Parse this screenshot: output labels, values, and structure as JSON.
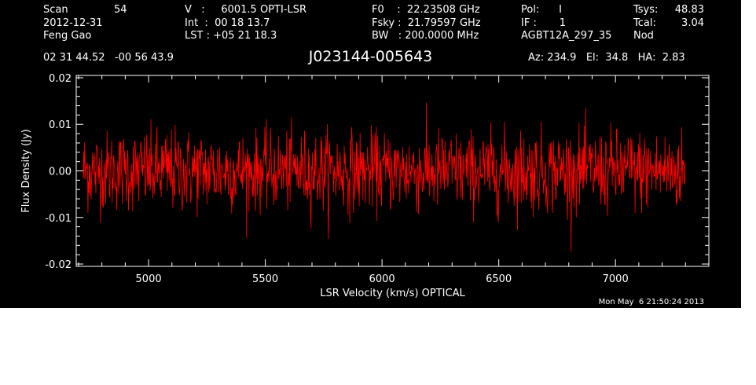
{
  "header": {
    "col1": [
      "Scan",
      "2012-12-31",
      "Feng Gao"
    ],
    "col1_value": "54",
    "col2": [
      "V   :     6001.5 OPTI-LSR",
      "Int  :  00 18 13.7",
      "LST : +05 21 18.3"
    ],
    "col3": [
      "F0    :  22.23508 GHz",
      "Fsky :  21.79597 GHz",
      "BW   : 200.0000 MHz"
    ],
    "col4": [
      "Pol:      I",
      "IF :       1",
      "AGBT12A_297_35"
    ],
    "col5_labels": [
      "Tsys:",
      "Tcal:",
      "Nod"
    ],
    "col5_values": [
      "48.83",
      "3.04",
      ""
    ],
    "coords": "02 31 44.52   -00 56 43.9",
    "source": "J023144-005643",
    "pointing": "Az: 234.9   El:  34.8   HA:  2.83",
    "timestamp": "Mon May  6 21:50:24 2013"
  },
  "colors": {
    "background": "#000000",
    "foreground": "#ffffff",
    "trace": "#ff0000"
  },
  "chart_data": {
    "type": "line",
    "title": "J023144-005643",
    "xlabel": "LSR Velocity (km/s) OPTICAL",
    "ylabel": "Flux Density (Jy)",
    "xlim": [
      4690,
      7400
    ],
    "ylim": [
      -0.0205,
      0.0205
    ],
    "xticks": [
      5000,
      5500,
      6000,
      6500,
      7000
    ],
    "yticks": [
      -0.02,
      -0.01,
      0.0,
      0.01,
      0.02
    ],
    "ytick_labels": [
      "-0.02",
      "-0.01",
      "0.00",
      "0.01",
      "0.02"
    ],
    "series": [
      {
        "x_start": 4720,
        "x_end": 7300,
        "step": 12,
        "rms_envelope_x": [
          4720,
          4800,
          4900,
          5000,
          5100,
          5200,
          5300,
          5400,
          5500,
          5600,
          5700,
          5800,
          5900,
          6000,
          6100,
          6200,
          6300,
          6400,
          6500,
          6600,
          6700,
          6800,
          6900,
          7000,
          7100,
          7200,
          7300
        ],
        "rms_envelope_y": [
          0.0052,
          0.005,
          0.0049,
          0.0052,
          0.0054,
          0.0051,
          0.005,
          0.0049,
          0.0048,
          0.0049,
          0.005,
          0.0051,
          0.005,
          0.0049,
          0.005,
          0.0053,
          0.005,
          0.0049,
          0.0051,
          0.0053,
          0.0052,
          0.0051,
          0.005,
          0.0052,
          0.0051,
          0.005,
          0.0052
        ],
        "mean": 0.0,
        "max_value": 0.017,
        "min_value": -0.0175
      }
    ],
    "grid": false
  }
}
